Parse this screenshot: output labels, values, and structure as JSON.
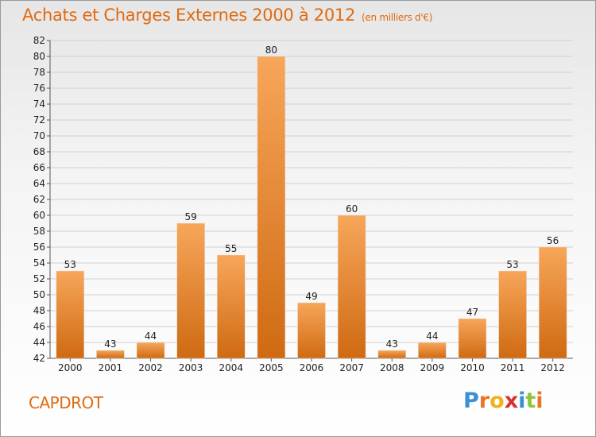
{
  "header": {
    "title": "Achats et Charges Externes 2000 à 2012",
    "subtitle": "(en milliers d'€)"
  },
  "footer": {
    "commune": "CAPDROT",
    "logo_letters": [
      "P",
      "r",
      "o",
      "x",
      "i",
      "t",
      "i"
    ],
    "logo_colors": [
      "#3a8fd6",
      "#e8762a",
      "#f0b21c",
      "#d6332e",
      "#3a8fd6",
      "#8cc63f",
      "#e8762a"
    ]
  },
  "colors": {
    "bar_light": "#f7a65a",
    "bar_dark": "#cf6a12",
    "grid": "#d0d0d0"
  },
  "chart_data": {
    "type": "bar",
    "title": "Achats et Charges Externes 2000 à 2012",
    "subtitle": "(en milliers d'€)",
    "xlabel": "",
    "ylabel": "",
    "categories": [
      "2000",
      "2001",
      "2002",
      "2003",
      "2004",
      "2005",
      "2006",
      "2007",
      "2008",
      "2009",
      "2010",
      "2011",
      "2012"
    ],
    "values": [
      53,
      43,
      44,
      59,
      55,
      80,
      49,
      60,
      43,
      44,
      47,
      53,
      56
    ],
    "value_labels": [
      "53",
      "43",
      "44",
      "59",
      "55",
      "80",
      "49",
      "60",
      "43",
      "44",
      "47",
      "53",
      "56"
    ],
    "ylim": [
      42,
      82
    ],
    "y_ticks": [
      "42",
      "44",
      "46",
      "48",
      "50",
      "52",
      "54",
      "56",
      "58",
      "60",
      "62",
      "64",
      "66",
      "68",
      "70",
      "72",
      "74",
      "76",
      "78",
      "80",
      "82"
    ],
    "grid": true,
    "legend": "none"
  }
}
